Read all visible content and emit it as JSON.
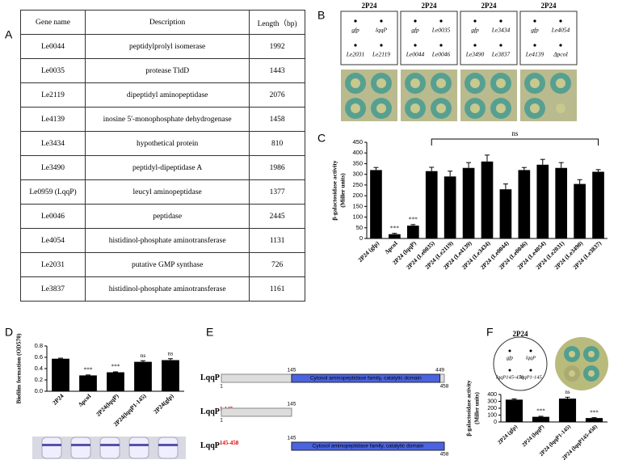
{
  "panel_labels": [
    "A",
    "B",
    "C",
    "D",
    "E",
    "F"
  ],
  "table": {
    "header": [
      "Gene name",
      "Description",
      "Length（bp)"
    ],
    "rows": [
      [
        "Le0044",
        "peptidylprolyl isomerase",
        "1992"
      ],
      [
        "Le0035",
        "protease TldD",
        "1443"
      ],
      [
        "Le2119",
        "dipeptidyl aminopeptidase",
        "2076"
      ],
      [
        "Le4139",
        "inosine 5'-monophosphate dehydrogenase",
        "1458"
      ],
      [
        "Le3434",
        "hypothetical protein",
        "810"
      ],
      [
        "Le3490",
        "peptidyl-dipeptidase A",
        "1986"
      ],
      [
        "Le0959 (LqqP)",
        "leucyl aminopeptidase",
        "1377"
      ],
      [
        "Le0046",
        "peptidase",
        "2445"
      ],
      [
        "Le4054",
        "histidinol-phosphate aminotransferase",
        "1131"
      ],
      [
        "Le2031",
        "putative GMP synthase",
        "726"
      ],
      [
        "Le3837",
        "histidinol-phosphate aminotransferase",
        "1161"
      ]
    ]
  },
  "panel_b": {
    "plates": [
      {
        "title": "2P24",
        "spots": [
          "gfp",
          "lqqP",
          "Le2031",
          "Le2119"
        ]
      },
      {
        "title": "2P24",
        "spots": [
          "gfp",
          "Le0035",
          "Le0044",
          "Le0046"
        ]
      },
      {
        "title": "2P24",
        "spots": [
          "gfp",
          "Le3434",
          "Le3490",
          "Le3837"
        ]
      },
      {
        "title": "2P24",
        "spots": [
          "gfp",
          "Le4054",
          "Le4139",
          "ΔpcoI"
        ]
      }
    ]
  },
  "chart_data": [
    {
      "type": "bar",
      "ylabel": [
        "β-galactosidase activity",
        "(Miller units)"
      ],
      "color": "#000000",
      "categories": [
        "2P24 (gfp)",
        "ΔpcoI",
        "2P24 (lqqP)",
        "2P24 (Le0035)",
        "2P24 (Le2119)",
        "2P24 (Le4139)",
        "2P24 (Le3434)",
        "2P24 (Le0044)",
        "2P24 (Le0046)",
        "2P24 (Le4054)",
        "2P24 (Le2031)",
        "2P24 (Le3490)",
        "2P24 (Le3837)"
      ],
      "values": [
        320,
        20,
        60,
        315,
        290,
        330,
        360,
        230,
        320,
        345,
        330,
        255,
        312
      ],
      "errors": [
        12,
        4,
        5,
        18,
        25,
        25,
        30,
        25,
        12,
        25,
        25,
        20,
        10
      ],
      "significance": [
        null,
        "***",
        "***",
        null,
        null,
        null,
        null,
        null,
        null,
        null,
        null,
        null,
        null
      ],
      "bracket_label": "ns",
      "ylim": [
        0,
        450
      ],
      "yticks": [
        0,
        50,
        100,
        150,
        200,
        250,
        300,
        350,
        400,
        450
      ]
    },
    {
      "type": "bar",
      "ylabel": [
        "Biofilm formation (OD570)"
      ],
      "color": "#000000",
      "categories": [
        "2P24",
        "ΔpcoI",
        "2P24(lqqP)",
        "2P24(lqqP1-145)",
        "2P24(gfp)"
      ],
      "values": [
        0.575,
        0.28,
        0.335,
        0.52,
        0.55
      ],
      "errors": [
        0.01,
        0.008,
        0.008,
        0.02,
        0.025
      ],
      "significance": [
        null,
        "***",
        "***",
        "ns",
        "ns"
      ],
      "ylim": [
        0,
        0.8
      ],
      "yticks": [
        {
          "value": 0,
          "label": "0.0"
        },
        0.2,
        0.4,
        0.6,
        0.8
      ]
    },
    {
      "type": "bar",
      "ylabel": [
        "β-galactosidase activity",
        "(Miller units)"
      ],
      "color": "#000000",
      "categories": [
        "2P24 (gfp)",
        "2P24 (lqqP)",
        "2P24 (lqqP1-145)",
        "2P24 (lqqP145-458)"
      ],
      "values": [
        325,
        75,
        340,
        57
      ],
      "errors": [
        10,
        8,
        20,
        6
      ],
      "significance": [
        null,
        "***",
        "ns",
        "***"
      ],
      "ylim": [
        0,
        400
      ],
      "yticks": [
        0,
        100,
        200,
        300,
        400
      ]
    }
  ],
  "panel_e": {
    "domain_label": "Cytosol aminopeptidase family, catalytic domain",
    "constructs": [
      {
        "name": "LqqP",
        "start": 1,
        "end": 458,
        "domain_start": 145,
        "domain_end": 449
      },
      {
        "name": "LqqP",
        "superscript": "1-145",
        "start": 1,
        "end": 145
      },
      {
        "name": "LqqP",
        "superscript": "145-458",
        "start": 145,
        "end": 458,
        "domain": true
      }
    ]
  },
  "panel_f": {
    "title": "2P24",
    "spots": [
      "gfp",
      "lqqP",
      "lqqP145-458",
      "lqqP1-145"
    ]
  }
}
